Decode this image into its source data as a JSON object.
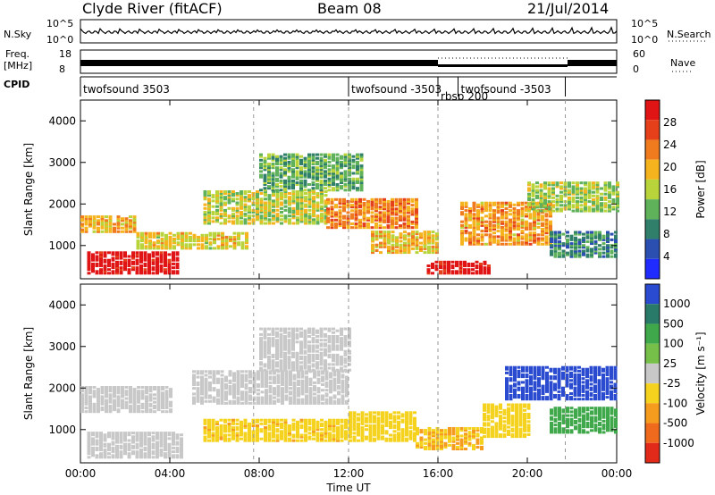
{
  "header": {
    "title": "Clyde River (fitACF)",
    "beam": "Beam 08",
    "date": "21/Jul/2014"
  },
  "panels": {
    "nsky_label": "N.Sky",
    "nsky_ticks": [
      "10^5",
      "10^0"
    ],
    "nsearch_label": "N.Search",
    "nsearch_ticks": [
      "10^5",
      "10^0"
    ],
    "freq_label_1": "Freq.",
    "freq_label_2": "[MHz]",
    "freq_ticks": [
      "18",
      "8"
    ],
    "nave_label": "Nave",
    "nave_ticks": [
      "60",
      "0"
    ],
    "cpid_label": "CPID",
    "cpid_segments": [
      {
        "label": "twofsound 3503",
        "start_h": 0,
        "end_h": 12.0
      },
      {
        "label": "twofsound -3503",
        "start_h": 12.0,
        "end_h": 16.0
      },
      {
        "label": "rbsp 200",
        "start_h": 16.0,
        "end_h": 16.9
      },
      {
        "label": "twofsound -3503",
        "start_h": 16.9,
        "end_h": 21.7
      }
    ]
  },
  "colors": {
    "power_scale": [
      "#1f2bff",
      "#2a4fb0",
      "#2f7f6a",
      "#5fb15a",
      "#b8d43a",
      "#f5b41e",
      "#f07a1e",
      "#e5401a",
      "#e01414"
    ],
    "velocity_scale": [
      "#2a4bd0",
      "#2a7a6a",
      "#3ea84a",
      "#76c04a",
      "#c8c8c8",
      "#f5d21e",
      "#f59b1e",
      "#f06a1e",
      "#e22a1a"
    ]
  },
  "chart_data": [
    {
      "type": "heatmap",
      "quantity": "Power",
      "ylabel": "Slant Range [km]",
      "xlabel": "Time UT",
      "x_ticks": [
        "00:00",
        "04:00",
        "08:00",
        "12:00",
        "16:00",
        "20:00",
        "00:00"
      ],
      "xlim_hours": [
        0,
        24
      ],
      "ylim": [
        200,
        4500
      ],
      "y_ticks": [
        1000,
        2000,
        3000,
        4000
      ],
      "colorbar_label": "Power [dB]",
      "colorbar_ticks": [
        "28",
        "24",
        "20",
        "16",
        "12",
        "8",
        "4"
      ],
      "colorbar_range": [
        0,
        30
      ],
      "regions": [
        {
          "t0": 0.3,
          "t1": 4.4,
          "r0": 300,
          "r1": 800,
          "value": 29
        },
        {
          "t0": 0.0,
          "t1": 2.5,
          "r0": 1300,
          "r1": 1700,
          "value": 18
        },
        {
          "t0": 2.5,
          "t1": 7.5,
          "r0": 900,
          "r1": 1300,
          "value": 16
        },
        {
          "t0": 5.5,
          "t1": 11.0,
          "r0": 1500,
          "r1": 2300,
          "value": 14
        },
        {
          "t0": 8.0,
          "t1": 12.5,
          "r0": 2300,
          "r1": 3200,
          "value": 10
        },
        {
          "t0": 11.0,
          "t1": 15.0,
          "r0": 1400,
          "r1": 2100,
          "value": 20
        },
        {
          "t0": 13.0,
          "t1": 16.0,
          "r0": 800,
          "r1": 1300,
          "value": 17
        },
        {
          "t0": 15.5,
          "t1": 18.3,
          "r0": 300,
          "r1": 600,
          "value": 28
        },
        {
          "t0": 17.0,
          "t1": 21.0,
          "r0": 1000,
          "r1": 2000,
          "value": 19
        },
        {
          "t0": 20.0,
          "t1": 24.0,
          "r0": 1800,
          "r1": 2500,
          "value": 13
        },
        {
          "t0": 21.0,
          "t1": 24.0,
          "r0": 700,
          "r1": 1300,
          "value": 8
        }
      ]
    },
    {
      "type": "heatmap",
      "quantity": "Velocity",
      "ylabel": "Slant Range [km]",
      "xlabel": "Time UT",
      "x_ticks": [
        "00:00",
        "04:00",
        "08:00",
        "12:00",
        "16:00",
        "20:00",
        "00:00"
      ],
      "xlim_hours": [
        0,
        24
      ],
      "ylim": [
        200,
        4500
      ],
      "y_ticks": [
        1000,
        2000,
        3000,
        4000
      ],
      "colorbar_label": "Velocity [m s⁻¹]",
      "colorbar_ticks": [
        "1000",
        "500",
        "100",
        "25",
        "-25",
        "-100",
        "-500",
        "-1000"
      ],
      "colorbar_range": [
        -1000,
        1000
      ],
      "regions": [
        {
          "t0": 0.3,
          "t1": 4.5,
          "r0": 300,
          "r1": 900,
          "value": 0
        },
        {
          "t0": 0.0,
          "t1": 4.0,
          "r0": 1400,
          "r1": 2000,
          "value": 0
        },
        {
          "t0": 5.0,
          "t1": 12.0,
          "r0": 1600,
          "r1": 2400,
          "value": 10
        },
        {
          "t0": 8.0,
          "t1": 12.0,
          "r0": 2400,
          "r1": 3400,
          "value": 5
        },
        {
          "t0": 5.5,
          "t1": 12.0,
          "r0": 700,
          "r1": 1200,
          "value": -400
        },
        {
          "t0": 12.0,
          "t1": 15.0,
          "r0": 700,
          "r1": 1400,
          "value": -300
        },
        {
          "t0": 15.0,
          "t1": 18.0,
          "r0": 500,
          "r1": 1000,
          "value": -450
        },
        {
          "t0": 18.0,
          "t1": 20.0,
          "r0": 800,
          "r1": 1600,
          "value": -350
        },
        {
          "t0": 19.0,
          "t1": 24.0,
          "r0": 1700,
          "r1": 2500,
          "value": 600
        },
        {
          "t0": 21.0,
          "t1": 24.0,
          "r0": 900,
          "r1": 1500,
          "value": 50
        }
      ]
    }
  ]
}
